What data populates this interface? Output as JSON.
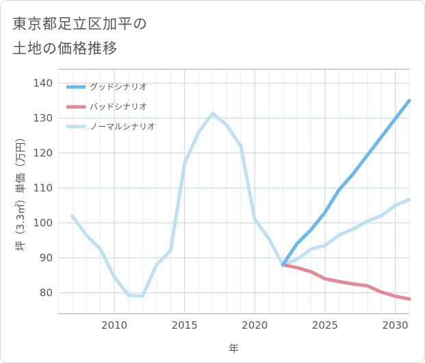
{
  "title_lines": [
    "東京都足立区加平の",
    "土地の価格推移"
  ],
  "chart_data": {
    "type": "line",
    "xlabel": "年",
    "ylabel": "坪（3.3㎡）単価（万円）",
    "xlim": [
      2006,
      2031
    ],
    "ylim": [
      74,
      144
    ],
    "xticks": [
      2010,
      2015,
      2020,
      2025,
      2030
    ],
    "yticks": [
      80,
      90,
      100,
      110,
      120,
      130,
      140
    ],
    "grid": true,
    "legend_position": "top-left",
    "series": [
      {
        "name": "グッドシナリオ",
        "color": "#6cb8ea",
        "x": [
          2022,
          2023,
          2024,
          2025,
          2026,
          2027,
          2028,
          2029,
          2030,
          2031
        ],
        "y": [
          88.0,
          94.0,
          98.0,
          103.0,
          109.5,
          114.0,
          119.3,
          124.5,
          129.8,
          135.0
        ]
      },
      {
        "name": "バッドシナリオ",
        "color": "#e08a94",
        "x": [
          2022,
          2023,
          2024,
          2025,
          2026,
          2027,
          2028,
          2029,
          2030,
          2031
        ],
        "y": [
          88.0,
          87.2,
          86.0,
          84.0,
          83.2,
          82.5,
          82.0,
          80.2,
          79.0,
          78.2
        ]
      },
      {
        "name": "ノーマルシナリオ",
        "color": "#bfe0f0",
        "x": [
          2007,
          2008,
          2009,
          2010,
          2011,
          2012,
          2013,
          2014,
          2015,
          2016,
          2017,
          2018,
          2019,
          2020,
          2021,
          2022,
          2023,
          2024,
          2025,
          2026,
          2027,
          2028,
          2029,
          2030,
          2031
        ],
        "y": [
          102.0,
          96.5,
          92.5,
          84.5,
          79.3,
          79.0,
          88.0,
          92.0,
          117.0,
          126.0,
          131.3,
          128.0,
          122.0,
          101.0,
          95.5,
          88.0,
          89.5,
          92.5,
          93.5,
          96.5,
          98.2,
          100.5,
          102.0,
          105.0,
          106.7
        ]
      }
    ]
  }
}
